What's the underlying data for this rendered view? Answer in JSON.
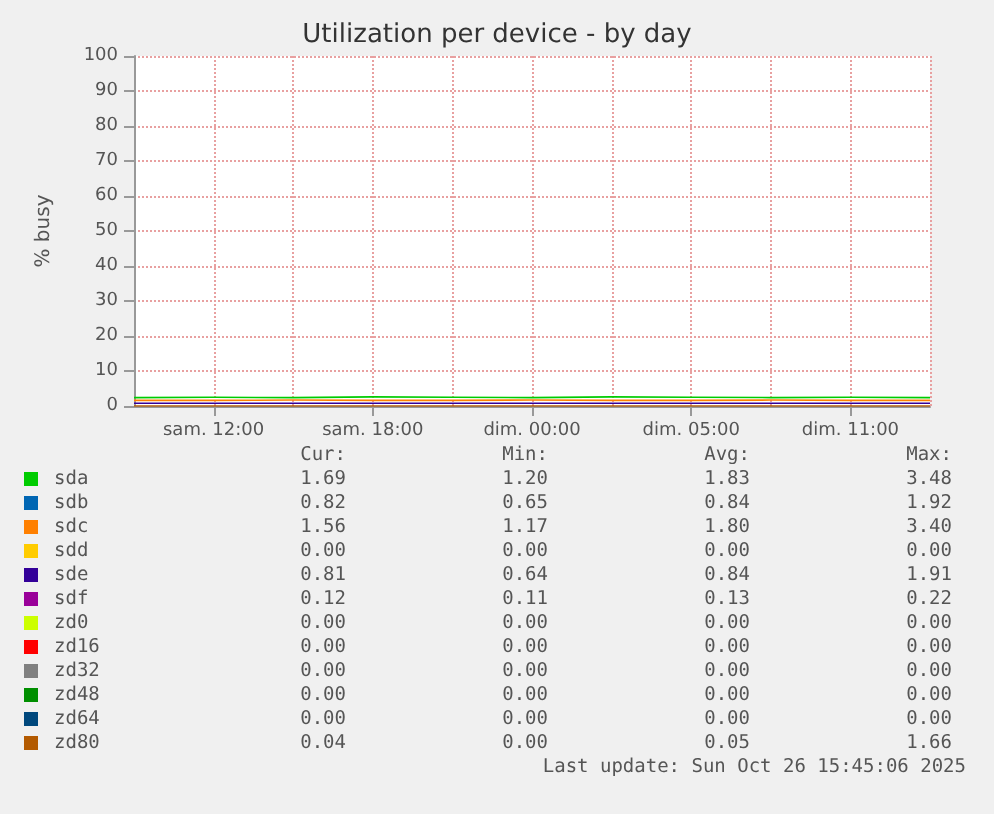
{
  "chart_data": {
    "type": "line",
    "title": "Utilization per device - by day",
    "ylabel": "% busy",
    "categories": [
      null,
      "sam. 12:00",
      null,
      "sam. 18:00",
      null,
      "dim. 00:00",
      null,
      "dim. 05:00",
      null,
      "dim. 11:00",
      null
    ],
    "ylim": [
      0,
      100
    ],
    "yticks": [
      0,
      10,
      20,
      30,
      40,
      50,
      60,
      70,
      80,
      90,
      100
    ],
    "grid": true,
    "legend": "bottom",
    "marker": "none",
    "line_style": "solid",
    "series": [
      {
        "name": "sda",
        "color": "#00cc00",
        "values": [
          2.4,
          2.5,
          2.4,
          2.6,
          2.5,
          2.4,
          2.6,
          2.5,
          2.4,
          2.5,
          2.4
        ]
      },
      {
        "name": "sdb",
        "color": "#0066b3",
        "values": [
          null,
          null,
          null,
          null,
          null,
          null,
          null,
          null,
          null,
          null,
          null
        ]
      },
      {
        "name": "sdc",
        "color": "#ff8000",
        "values": [
          1.6,
          1.6,
          1.7,
          1.6,
          1.6,
          1.7,
          1.6,
          1.6,
          1.7,
          1.6,
          1.6
        ]
      },
      {
        "name": "sdd",
        "color": "#ffcc00",
        "values": [
          null,
          null,
          null,
          null,
          null,
          null,
          null,
          null,
          null,
          null,
          null
        ]
      },
      {
        "name": "sde",
        "color": "#330099",
        "values": [
          0.8,
          0.8,
          0.8,
          0.8,
          0.8,
          0.8,
          0.8,
          0.8,
          0.8,
          0.8,
          0.8
        ]
      },
      {
        "name": "sdf",
        "color": "#990099",
        "values": [
          null,
          null,
          null,
          null,
          null,
          null,
          null,
          null,
          null,
          null,
          null
        ]
      },
      {
        "name": "zd0",
        "color": "#ccff00",
        "values": [
          null,
          null,
          null,
          null,
          null,
          null,
          null,
          null,
          null,
          null,
          null
        ]
      },
      {
        "name": "zd16",
        "color": "#ff0000",
        "values": [
          null,
          null,
          null,
          null,
          null,
          null,
          null,
          null,
          null,
          null,
          null
        ]
      },
      {
        "name": "zd32",
        "color": "#808080",
        "values": [
          null,
          null,
          null,
          null,
          null,
          null,
          null,
          null,
          null,
          null,
          null
        ]
      },
      {
        "name": "zd48",
        "color": "#008f00",
        "values": [
          null,
          null,
          null,
          null,
          null,
          null,
          null,
          null,
          null,
          null,
          null
        ]
      },
      {
        "name": "zd64",
        "color": "#00487d",
        "values": [
          null,
          null,
          null,
          null,
          null,
          null,
          null,
          null,
          null,
          null,
          null
        ]
      },
      {
        "name": "zd80",
        "color": "#b35a00",
        "values": [
          0,
          0,
          0,
          0,
          0,
          0,
          0,
          0,
          0,
          0,
          0
        ]
      }
    ],
    "annotations": [
      "Cur:",
      "Min:",
      "Avg:",
      "Max:",
      "1.69",
      "1.20",
      "1.83",
      "3.48",
      "0.82",
      "0.65",
      "0.84",
      "1.92",
      "1.56",
      "1.17",
      "1.80",
      "3.40",
      "0.00",
      "0.00",
      "0.00",
      "0.00",
      "0.81",
      "0.64",
      "0.84",
      "1.91",
      "0.12",
      "0.11",
      "0.13",
      "0.22",
      "0.00",
      "0.00",
      "0.00",
      "0.00",
      "0.00",
      "0.00",
      "0.00",
      "0.00",
      "0.00",
      "0.00",
      "0.00",
      "0.00",
      "0.00",
      "0.00",
      "0.00",
      "0.00",
      "0.00",
      "0.00",
      "0.00",
      "0.00",
      "0.04",
      "0.00",
      "0.05",
      "1.66",
      "Last update: Sun Oct 26 15:45:06 2025"
    ]
  }
}
